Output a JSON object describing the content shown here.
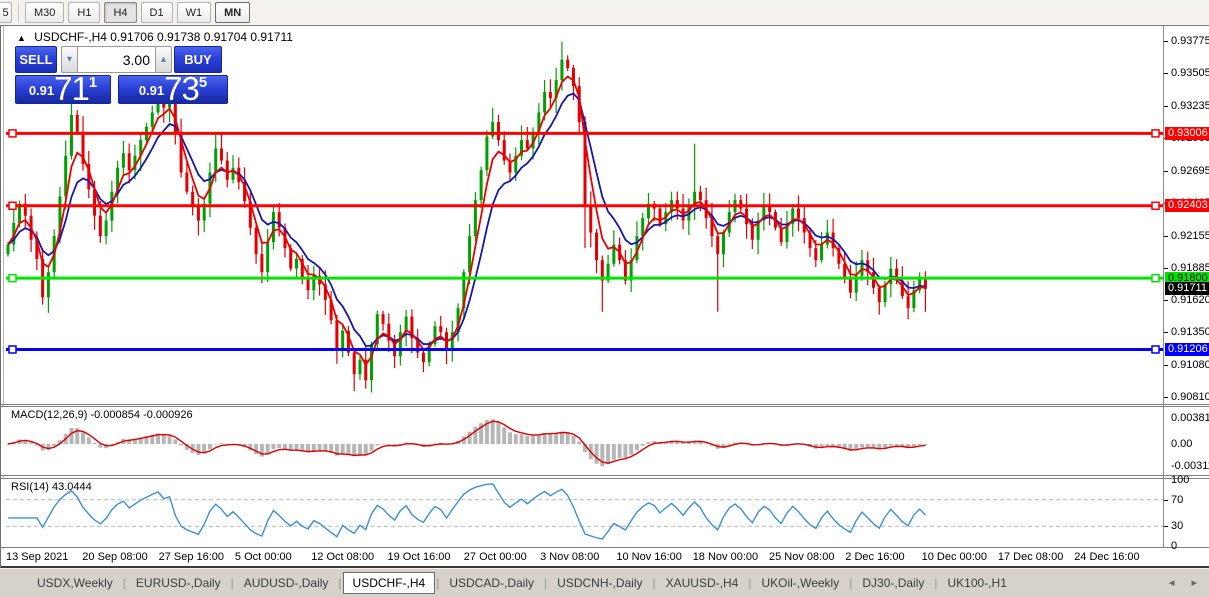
{
  "icons": {
    "collapse_panel": "▲",
    "spinner_up": "▴",
    "spinner_down": "▾",
    "tab_scroll_left": "◂",
    "tab_scroll_right": "▸"
  },
  "toolbar": {
    "timeframes": [
      "5",
      "M30",
      "H1",
      "H4",
      "D1",
      "W1",
      "MN"
    ],
    "active": "H4"
  },
  "chart": {
    "title": {
      "symbol_period": "USDCHF-,H4",
      "ohlc": "0.91706 0.91738 0.91704 0.91711"
    }
  },
  "trade_panel": {
    "sell_label": "SELL",
    "buy_label": "BUY",
    "volume": "3.00",
    "sell_price": {
      "prefix": "0.91",
      "big": "71",
      "sup": "1"
    },
    "buy_price": {
      "prefix": "0.91",
      "big": "73",
      "sup": "5"
    }
  },
  "indicators": {
    "macd": {
      "label": "MACD(12,26,9) -0.000854 -0.000926",
      "params": "12,26,9",
      "value": -0.000854,
      "signal_value": -0.000926,
      "axis_labels": [
        {
          "text": "0.003811",
          "v": 0.003811
        },
        {
          "text": "0.00",
          "v": 0
        },
        {
          "text": "-0.003115",
          "v": -0.003115
        }
      ]
    },
    "rsi": {
      "label": "RSI(14) 43.0444",
      "params": "14",
      "value": 43.0444,
      "axis_labels": [
        {
          "text": "100",
          "v": 100
        },
        {
          "text": "70",
          "v": 70
        },
        {
          "text": "30",
          "v": 30
        },
        {
          "text": "0",
          "v": 0
        }
      ],
      "levels": [
        70,
        30
      ]
    }
  },
  "tabs": {
    "items": [
      "USDX,Weekly",
      "EURUSD-,Daily",
      "AUDUSD-,Daily",
      "USDCHF-,H4",
      "USDCAD-,Daily",
      "USDCNH-,Daily",
      "XAUUSD-,H4",
      "UKOil-,Weekly",
      "DJ30-,Daily",
      "UK100-,H1"
    ],
    "active": "USDCHF-,H4"
  },
  "colors": {
    "candle_up": "#00a000",
    "candle_down": "#e40000",
    "ma_fast": "#ee0000",
    "ma_slow": "#1515b2",
    "macd_hist": "#b6b6b6",
    "macd_signal": "#dd0000",
    "rsi_line": "#3c8fd8",
    "level_dash": "#b8b8b8",
    "line_red": "#ff0000",
    "line_green": "#00e400",
    "line_blue": "#0000ff",
    "last_price_bg": "#000000"
  },
  "chart_data": {
    "type": "candlestick",
    "symbol": "USDCHF",
    "period": "H4",
    "title": "USDCHF-,H4",
    "ohlc_current": {
      "open": 0.91706,
      "high": 0.91738,
      "low": 0.91704,
      "close": 0.91711
    },
    "y_range": [
      0.90752,
      0.93867
    ],
    "price_ticks": [
      "0.93775",
      "0.93505",
      "0.93235",
      "0.92965",
      "0.92695",
      "0.92425",
      "0.92155",
      "0.91885",
      "0.91620",
      "0.91350",
      "0.91080",
      "0.90810"
    ],
    "h_lines": [
      {
        "price": 0.93006,
        "label": "0.93006",
        "color": "#ff0000",
        "label_fg": "#ffffff"
      },
      {
        "price": 0.92403,
        "label": "0.92403",
        "color": "#ff0000",
        "label_fg": "#ffffff"
      },
      {
        "price": 0.918,
        "label": "0.91800",
        "color": "#00e400",
        "label_fg": "#000000"
      },
      {
        "price": 0.91206,
        "label": "0.91206",
        "color": "#0000ff",
        "label_fg": "#ffffff"
      }
    ],
    "last_price": {
      "value": 0.91711,
      "label": "0.91711",
      "bg": "#000000",
      "fg": "#ffffff"
    },
    "x_labels": [
      "13 Sep 2021",
      "20 Sep 08:00",
      "27 Sep 16:00",
      "5 Oct 00:00",
      "12 Oct 08:00",
      "19 Oct 16:00",
      "27 Oct 00:00",
      "3 Nov 08:00",
      "10 Nov 16:00",
      "18 Nov 00:00",
      "25 Nov 08:00",
      "2 Dec 16:00",
      "10 Dec 00:00",
      "17 Dec 08:00",
      "24 Dec 16:00"
    ],
    "candles": {
      "closes": [
        0.9208,
        0.9226,
        0.9242,
        0.9232,
        0.9212,
        0.9196,
        0.9164,
        0.9185,
        0.9215,
        0.9248,
        0.9282,
        0.9316,
        0.9302,
        0.9275,
        0.9254,
        0.9232,
        0.9215,
        0.9228,
        0.9252,
        0.9272,
        0.9284,
        0.927,
        0.9282,
        0.9295,
        0.9306,
        0.9318,
        0.933,
        0.9322,
        0.9328,
        0.93,
        0.9268,
        0.9252,
        0.924,
        0.9228,
        0.9242,
        0.9268,
        0.9288,
        0.9278,
        0.9262,
        0.9272,
        0.926,
        0.9244,
        0.9222,
        0.92,
        0.9185,
        0.921,
        0.9235,
        0.9222,
        0.9205,
        0.9188,
        0.9196,
        0.918,
        0.917,
        0.9182,
        0.9175,
        0.9162,
        0.9145,
        0.912,
        0.9136,
        0.9118,
        0.91,
        0.9112,
        0.9095,
        0.9125,
        0.915,
        0.9142,
        0.9128,
        0.9115,
        0.9135,
        0.9148,
        0.913,
        0.9118,
        0.911,
        0.9125,
        0.914,
        0.9135,
        0.912,
        0.9135,
        0.9155,
        0.9185,
        0.9215,
        0.9245,
        0.927,
        0.9298,
        0.931,
        0.9295,
        0.9278,
        0.9268,
        0.9282,
        0.9295,
        0.9288,
        0.9302,
        0.9318,
        0.9335,
        0.933,
        0.9345,
        0.9362,
        0.9355,
        0.934,
        0.931,
        0.924,
        0.9218,
        0.9195,
        0.9178,
        0.9192,
        0.9208,
        0.9195,
        0.9178,
        0.9195,
        0.9215,
        0.923,
        0.9242,
        0.9238,
        0.9225,
        0.9235,
        0.9245,
        0.9238,
        0.9228,
        0.924,
        0.9252,
        0.9245,
        0.923,
        0.9215,
        0.92,
        0.9218,
        0.9235,
        0.9245,
        0.9238,
        0.9225,
        0.9212,
        0.9228,
        0.924,
        0.9235,
        0.9222,
        0.921,
        0.9225,
        0.9238,
        0.923,
        0.9218,
        0.9205,
        0.9195,
        0.9208,
        0.9218,
        0.9205,
        0.9192,
        0.918,
        0.9168,
        0.9182,
        0.9195,
        0.9185,
        0.9172,
        0.916,
        0.9175,
        0.9188,
        0.9178,
        0.9165,
        0.9155,
        0.917,
        0.918,
        0.91711
      ],
      "wick_overrides": {
        "6": [
          null,
          0.9158
        ],
        "11": [
          0.9327,
          null
        ],
        "26": [
          0.9337,
          null
        ],
        "60": [
          null,
          0.9086
        ],
        "62": [
          null,
          0.9088
        ],
        "84": [
          0.9322,
          null
        ],
        "96": [
          0.9377,
          null
        ],
        "100": [
          null,
          0.9205
        ],
        "103": [
          null,
          0.9152
        ],
        "119": [
          0.9292,
          null
        ],
        "123": [
          null,
          0.9152
        ],
        "159": [
          null,
          0.9152
        ]
      }
    }
  }
}
